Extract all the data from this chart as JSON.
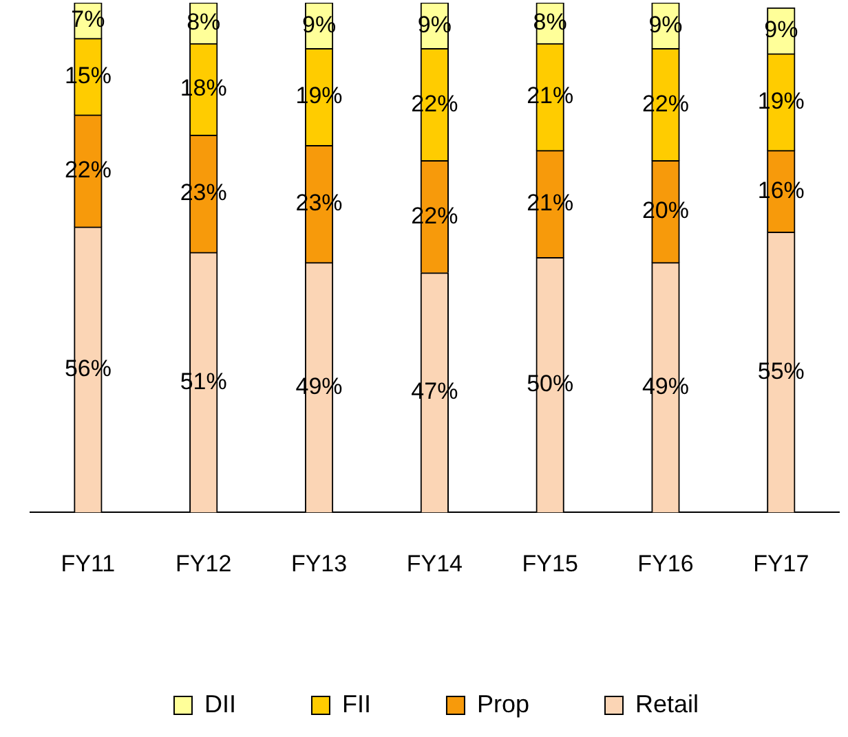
{
  "chart_data": {
    "type": "bar",
    "stacked": true,
    "legend": "bottom",
    "grid": false,
    "categories": [
      "FY11",
      "FY12",
      "FY13",
      "FY14",
      "FY15",
      "FY16",
      "FY17"
    ],
    "series": [
      {
        "name": "Retail",
        "color": "#fbd5b5",
        "values": [
          56,
          51,
          49,
          47,
          50,
          49,
          55
        ],
        "value_labels": [
          "56%",
          "51%",
          "49%",
          "47%",
          "50%",
          "49%",
          "55%"
        ]
      },
      {
        "name": "Prop",
        "color": "#f79a0b",
        "values": [
          22,
          23,
          23,
          22,
          21,
          20,
          16
        ],
        "value_labels": [
          "22%",
          "23%",
          "23%",
          "22%",
          "21%",
          "20%",
          "16%"
        ]
      },
      {
        "name": "FII",
        "color": "#ffcc00",
        "values": [
          15,
          18,
          19,
          22,
          21,
          22,
          19
        ],
        "value_labels": [
          "15%",
          "18%",
          "19%",
          "22%",
          "21%",
          "22%",
          "19%"
        ]
      },
      {
        "name": "DII",
        "color": "#ffff99",
        "values": [
          7,
          8,
          9,
          9,
          8,
          9,
          9
        ],
        "value_labels": [
          "7%",
          "8%",
          "9%",
          "9%",
          "8%",
          "9%",
          "9%"
        ]
      }
    ]
  }
}
